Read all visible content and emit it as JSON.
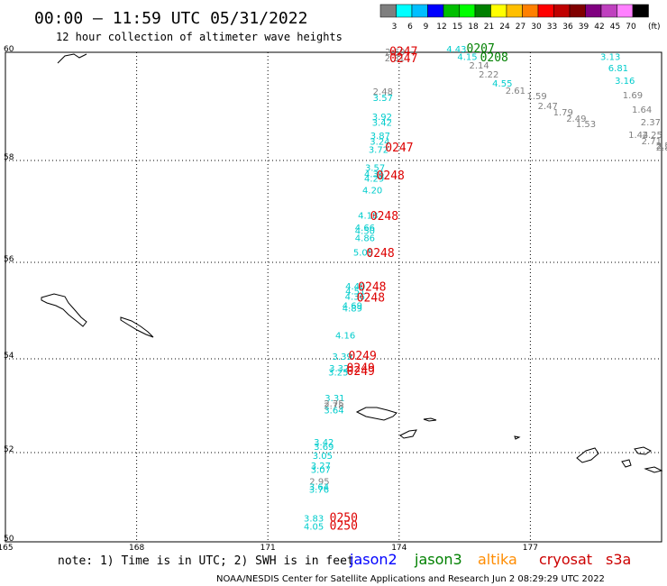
{
  "header": {
    "title": "00:00 – 11:59 UTC 05/31/2022",
    "subtitle": "12 hour collection of altimeter wave heights"
  },
  "colorbar": {
    "colors": [
      "#7f7f7f",
      "#00ffff",
      "#00bfff",
      "#0000ff",
      "#00bf00",
      "#00ff00",
      "#008000",
      "#ffff00",
      "#ffbf00",
      "#ff8000",
      "#ff0000",
      "#bf0000",
      "#800000",
      "#800080",
      "#bf40bf",
      "#ff80ff",
      "#000000"
    ],
    "labels": [
      "3",
      "6",
      "9",
      "12",
      "15",
      "18",
      "21",
      "24",
      "27",
      "30",
      "33",
      "36",
      "39",
      "42",
      "45",
      "70"
    ],
    "unit": "(ft)"
  },
  "axes": {
    "lon_ticks": [
      "165",
      "168",
      "171",
      "174",
      "177"
    ],
    "lat_ticks": [
      "60",
      "58",
      "56",
      "54",
      "52",
      "50"
    ]
  },
  "footer": {
    "note": "note: 1) Time is in UTC; 2) SWH is in feet",
    "missions": [
      {
        "name": "jason2",
        "color": "#0000ff"
      },
      {
        "name": "jason3",
        "color": "#008000"
      },
      {
        "name": "altika",
        "color": "#ff8c00"
      },
      {
        "name": "cryosat",
        "color": "#cc0000"
      },
      {
        "name": "s3a",
        "color": "#cc0000"
      }
    ],
    "credit": "NOAA/NESDIS Center for Satellite Applications and Research   Jun  2 08:29:29 UTC 2022"
  },
  "observations": [
    {
      "v": "2.60",
      "c": "#808080",
      "lon": 173.68,
      "lat": 59.95
    },
    {
      "v": "2.31",
      "c": "#808080",
      "lon": 173.67,
      "lat": 59.83
    },
    {
      "v": "2.48",
      "c": "#808080",
      "lon": 173.4,
      "lat": 59.22
    },
    {
      "v": "3.57",
      "c": "#00cccc",
      "lon": 173.4,
      "lat": 59.1
    },
    {
      "v": "3.92",
      "c": "#00cccc",
      "lon": 173.38,
      "lat": 58.75
    },
    {
      "v": "3.42",
      "c": "#00cccc",
      "lon": 173.38,
      "lat": 58.64
    },
    {
      "v": "3.87",
      "c": "#00cccc",
      "lon": 173.34,
      "lat": 58.4
    },
    {
      "v": "3.24",
      "c": "#00cccc",
      "lon": 173.33,
      "lat": 58.29
    },
    {
      "v": "3.72",
      "c": "#00cccc",
      "lon": 173.3,
      "lat": 58.14
    },
    {
      "v": "3.57",
      "c": "#00cccc",
      "lon": 173.22,
      "lat": 57.8
    },
    {
      "v": "4.36",
      "c": "#00cccc",
      "lon": 173.2,
      "lat": 57.67
    },
    {
      "v": "4.29",
      "c": "#00cccc",
      "lon": 173.2,
      "lat": 57.58
    },
    {
      "v": "4.20",
      "c": "#00cccc",
      "lon": 173.16,
      "lat": 57.35
    },
    {
      "v": "4.18",
      "c": "#00cccc",
      "lon": 173.06,
      "lat": 56.86
    },
    {
      "v": "4.66",
      "c": "#00cccc",
      "lon": 172.99,
      "lat": 56.62
    },
    {
      "v": "4.50",
      "c": "#00cccc",
      "lon": 172.99,
      "lat": 56.56
    },
    {
      "v": "4.86",
      "c": "#00cccc",
      "lon": 172.99,
      "lat": 56.42
    },
    {
      "v": "5.05",
      "c": "#00cccc",
      "lon": 172.95,
      "lat": 56.13
    },
    {
      "v": "4.40",
      "c": "#00cccc",
      "lon": 172.77,
      "lat": 55.44
    },
    {
      "v": "4.51",
      "c": "#00cccc",
      "lon": 172.77,
      "lat": 55.34
    },
    {
      "v": "4.36",
      "c": "#00cccc",
      "lon": 172.76,
      "lat": 55.22
    },
    {
      "v": "4.69",
      "c": "#00cccc",
      "lon": 172.7,
      "lat": 55.04
    },
    {
      "v": "4.89",
      "c": "#00cccc",
      "lon": 172.7,
      "lat": 54.98
    },
    {
      "v": "4.16",
      "c": "#00cccc",
      "lon": 172.54,
      "lat": 54.42
    },
    {
      "v": "3.39",
      "c": "#00cccc",
      "lon": 172.47,
      "lat": 53.98
    },
    {
      "v": "3.32",
      "c": "#00cccc",
      "lon": 172.4,
      "lat": 53.73
    },
    {
      "v": "3.25",
      "c": "#00cccc",
      "lon": 172.38,
      "lat": 53.64
    },
    {
      "v": "3.31",
      "c": "#00cccc",
      "lon": 172.3,
      "lat": 53.1
    },
    {
      "v": "2.75",
      "c": "#808080",
      "lon": 172.28,
      "lat": 52.98
    },
    {
      "v": "2.78",
      "c": "#808080",
      "lon": 172.28,
      "lat": 52.93
    },
    {
      "v": "3.64",
      "c": "#00cccc",
      "lon": 172.28,
      "lat": 52.84
    },
    {
      "v": "3.42",
      "c": "#00cccc",
      "lon": 172.05,
      "lat": 52.15
    },
    {
      "v": "3.69",
      "c": "#00cccc",
      "lon": 172.05,
      "lat": 52.06
    },
    {
      "v": "3.05",
      "c": "#00cccc",
      "lon": 172.02,
      "lat": 51.86
    },
    {
      "v": "3.27",
      "c": "#00cccc",
      "lon": 171.98,
      "lat": 51.64
    },
    {
      "v": "3.07",
      "c": "#00cccc",
      "lon": 171.98,
      "lat": 51.55
    },
    {
      "v": "2.95",
      "c": "#808080",
      "lon": 171.95,
      "lat": 51.28
    },
    {
      "v": "3.64",
      "c": "#00cccc",
      "lon": 171.94,
      "lat": 51.16
    },
    {
      "v": "3.76",
      "c": "#00cccc",
      "lon": 171.94,
      "lat": 51.1
    },
    {
      "v": "3.83",
      "c": "#00cccc",
      "lon": 171.82,
      "lat": 50.45
    },
    {
      "v": "4.05",
      "c": "#00cccc",
      "lon": 171.82,
      "lat": 50.27
    },
    {
      "v": "4.43",
      "c": "#00cccc",
      "lon": 175.08,
      "lat": 60.04
    },
    {
      "v": "4.15",
      "c": "#00cccc",
      "lon": 175.33,
      "lat": 59.86
    },
    {
      "v": "2.14",
      "c": "#808080",
      "lon": 175.6,
      "lat": 59.7
    },
    {
      "v": "2.22",
      "c": "#808080",
      "lon": 175.82,
      "lat": 59.53
    },
    {
      "v": "4.55",
      "c": "#00cccc",
      "lon": 176.13,
      "lat": 59.37
    },
    {
      "v": "2.61",
      "c": "#808080",
      "lon": 176.43,
      "lat": 59.23
    },
    {
      "v": "1.59",
      "c": "#808080",
      "lon": 176.92,
      "lat": 59.13
    },
    {
      "v": "2.47",
      "c": "#808080",
      "lon": 177.17,
      "lat": 58.95
    },
    {
      "v": "1.79",
      "c": "#808080",
      "lon": 177.52,
      "lat": 58.83
    },
    {
      "v": "2.49",
      "c": "#808080",
      "lon": 177.82,
      "lat": 58.72
    },
    {
      "v": "1.53",
      "c": "#808080",
      "lon": 178.04,
      "lat": 58.62
    },
    {
      "v": "3.13",
      "c": "#00cccc",
      "lon": 178.6,
      "lat": 59.86
    },
    {
      "v": "6.81",
      "c": "#00cccc",
      "lon": 178.78,
      "lat": 59.65
    },
    {
      "v": "3.16",
      "c": "#00cccc",
      "lon": 178.93,
      "lat": 59.42
    },
    {
      "v": "1.69",
      "c": "#808080",
      "lon": 179.11,
      "lat": 59.15
    },
    {
      "v": "1.64",
      "c": "#808080",
      "lon": 179.32,
      "lat": 58.88
    },
    {
      "v": "2.37",
      "c": "#808080",
      "lon": 179.52,
      "lat": 58.65
    },
    {
      "v": "1.44",
      "c": "#808080",
      "lon": 179.24,
      "lat": 58.42
    },
    {
      "v": "2.25",
      "c": "#808080",
      "lon": 179.56,
      "lat": 58.42
    },
    {
      "v": "2.71",
      "c": "#808080",
      "lon": 179.54,
      "lat": 58.3
    },
    {
      "v": "2.5",
      "c": "#808080",
      "lon": 179.87,
      "lat": 58.22
    },
    {
      "v": "2.8",
      "c": "#808080",
      "lon": 179.87,
      "lat": 58.18
    }
  ],
  "passes": [
    {
      "t": "0247",
      "c": "#dd0000",
      "lon": 173.78,
      "lat": 59.94
    },
    {
      "t": "0247",
      "c": "#dd0000",
      "lon": 173.78,
      "lat": 59.82
    },
    {
      "t": "0247",
      "c": "#dd0000",
      "lon": 173.68,
      "lat": 58.17
    },
    {
      "t": "0248",
      "c": "#dd0000",
      "lon": 173.48,
      "lat": 57.63
    },
    {
      "t": "0248",
      "c": "#dd0000",
      "lon": 173.34,
      "lat": 56.83
    },
    {
      "t": "0248",
      "c": "#dd0000",
      "lon": 173.25,
      "lat": 56.11
    },
    {
      "t": "0248",
      "c": "#dd0000",
      "lon": 173.06,
      "lat": 55.41
    },
    {
      "t": "0248",
      "c": "#dd0000",
      "lon": 173.03,
      "lat": 55.19
    },
    {
      "t": "0249",
      "c": "#dd0000",
      "lon": 172.84,
      "lat": 53.98
    },
    {
      "t": "0249",
      "c": "#dd0000",
      "lon": 172.8,
      "lat": 53.72
    },
    {
      "t": "0249",
      "c": "#dd0000",
      "lon": 172.8,
      "lat": 53.65
    },
    {
      "t": "0250",
      "c": "#dd0000",
      "lon": 172.41,
      "lat": 50.45
    },
    {
      "t": "0250",
      "c": "#dd0000",
      "lon": 172.41,
      "lat": 50.27
    },
    {
      "t": "0207",
      "c": "#008000",
      "lon": 175.54,
      "lat": 60.04
    },
    {
      "t": "0208",
      "c": "#008000",
      "lon": 175.85,
      "lat": 59.83
    }
  ]
}
